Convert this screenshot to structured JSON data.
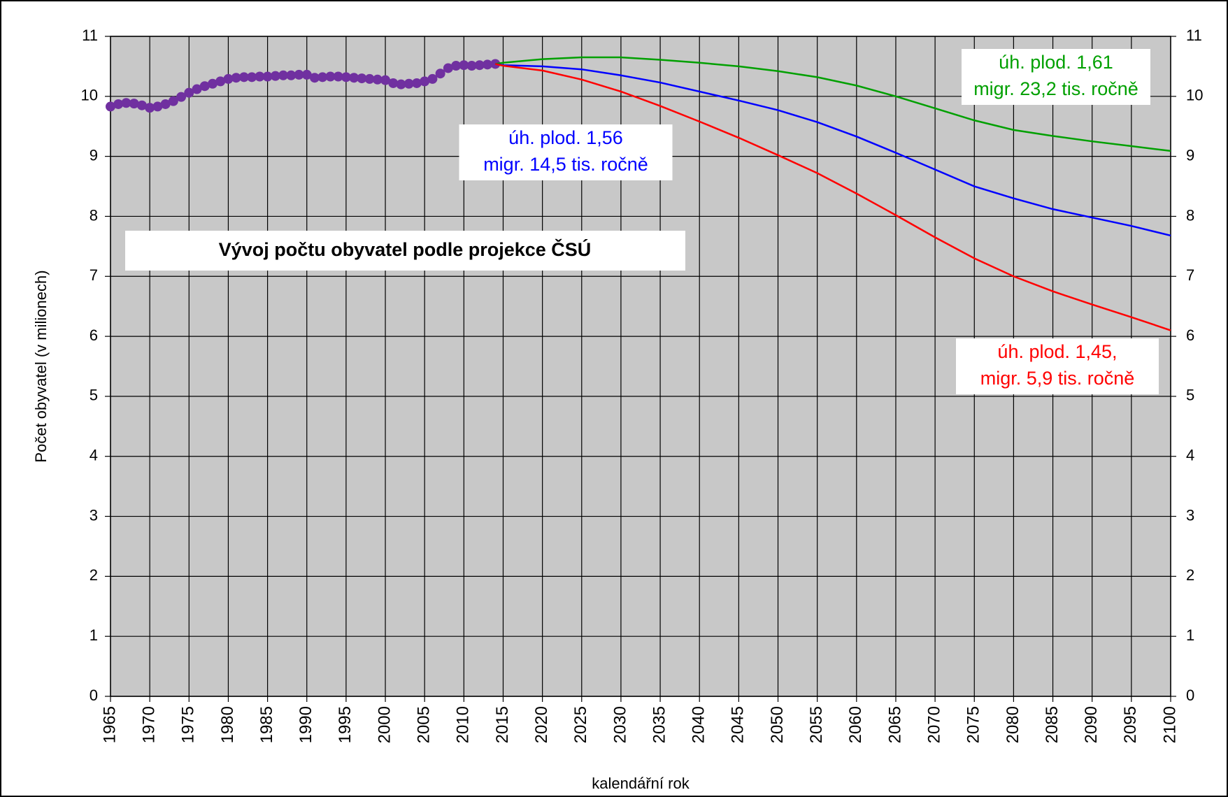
{
  "chart_data": {
    "type": "line",
    "title": "Vývoj počtu obyvatel podle projekce ČSÚ",
    "x_label": "kalendářní rok",
    "y_label": "Počet obyvatel (v milionech)",
    "xlim": [
      1965,
      2100
    ],
    "xticks": [
      1965,
      1970,
      1975,
      1980,
      1985,
      1990,
      1995,
      2000,
      2005,
      2010,
      2015,
      2020,
      2025,
      2030,
      2035,
      2040,
      2045,
      2050,
      2055,
      2060,
      2065,
      2070,
      2075,
      2080,
      2085,
      2090,
      2095,
      2100
    ],
    "ylim": [
      0,
      11
    ],
    "yticks": [
      0,
      1,
      2,
      3,
      4,
      5,
      6,
      7,
      8,
      9,
      10,
      11
    ],
    "y2lim": [
      0,
      11
    ],
    "y2ticks": [
      0,
      1,
      2,
      3,
      4,
      5,
      6,
      7,
      8,
      9,
      10,
      11
    ],
    "grid": true,
    "series": [
      {
        "color": "#7030a0",
        "markers": true,
        "x": [
          1965,
          1966,
          1967,
          1968,
          1969,
          1970,
          1971,
          1972,
          1973,
          1974,
          1975,
          1976,
          1977,
          1978,
          1979,
          1980,
          1981,
          1982,
          1983,
          1984,
          1985,
          1986,
          1987,
          1988,
          1989,
          1990,
          1991,
          1992,
          1993,
          1994,
          1995,
          1996,
          1997,
          1998,
          1999,
          2000,
          2001,
          2002,
          2003,
          2004,
          2005,
          2006,
          2007,
          2008,
          2009,
          2010,
          2011,
          2012,
          2013,
          2014
        ],
        "values": [
          9.83,
          9.87,
          9.89,
          9.88,
          9.85,
          9.81,
          9.83,
          9.87,
          9.92,
          9.99,
          10.06,
          10.12,
          10.17,
          10.21,
          10.25,
          10.29,
          10.31,
          10.32,
          10.32,
          10.33,
          10.33,
          10.34,
          10.35,
          10.35,
          10.36,
          10.36,
          10.31,
          10.32,
          10.33,
          10.33,
          10.32,
          10.31,
          10.3,
          10.29,
          10.28,
          10.27,
          10.22,
          10.2,
          10.21,
          10.22,
          10.25,
          10.29,
          10.38,
          10.47,
          10.51,
          10.52,
          10.51,
          10.52,
          10.53,
          10.54
        ]
      },
      {
        "color": "#00a000",
        "x": [
          2014,
          2015,
          2020,
          2025,
          2030,
          2035,
          2040,
          2045,
          2050,
          2055,
          2060,
          2065,
          2070,
          2075,
          2080,
          2085,
          2090,
          2095,
          2100
        ],
        "values": [
          10.54,
          10.56,
          10.62,
          10.65,
          10.65,
          10.61,
          10.56,
          10.5,
          10.42,
          10.32,
          10.18,
          10.0,
          9.8,
          9.6,
          9.44,
          9.34,
          9.25,
          9.17,
          9.09
        ]
      },
      {
        "color": "#0000ff",
        "x": [
          2014,
          2015,
          2020,
          2025,
          2030,
          2035,
          2040,
          2045,
          2050,
          2055,
          2060,
          2065,
          2070,
          2075,
          2080,
          2085,
          2090,
          2095,
          2100
        ],
        "values": [
          10.54,
          10.52,
          10.5,
          10.45,
          10.35,
          10.23,
          10.08,
          9.93,
          9.77,
          9.57,
          9.33,
          9.06,
          8.78,
          8.5,
          8.3,
          8.12,
          7.98,
          7.84,
          7.68
        ]
      },
      {
        "color": "#ff0000",
        "x": [
          2014,
          2015,
          2020,
          2025,
          2030,
          2035,
          2040,
          2045,
          2050,
          2055,
          2060,
          2065,
          2070,
          2075,
          2080,
          2085,
          2090,
          2095,
          2100
        ],
        "values": [
          10.54,
          10.51,
          10.43,
          10.28,
          10.08,
          9.84,
          9.58,
          9.31,
          9.02,
          8.72,
          8.38,
          8.02,
          7.65,
          7.3,
          7.0,
          6.75,
          6.53,
          6.32,
          6.1
        ]
      }
    ],
    "annotations": [
      {
        "color": "#00a000",
        "lines": [
          "úh. plod. 1,61",
          "migr. 23,2 tis. ročně"
        ]
      },
      {
        "color": "#0000ff",
        "lines": [
          "úh. plod. 1,56",
          "migr. 14,5 tis. ročně"
        ]
      },
      {
        "color": "#ff0000",
        "lines": [
          "úh. plod. 1,45,",
          "migr. 5,9 tis. ročně"
        ]
      }
    ]
  }
}
